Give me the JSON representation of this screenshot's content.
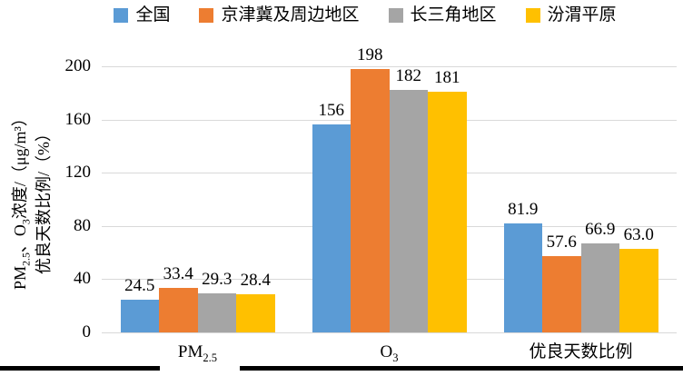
{
  "legend": {
    "items": [
      {
        "label": "全国",
        "color": "#5B9BD5"
      },
      {
        "label": "京津冀及周边地区",
        "color": "#ED7D31"
      },
      {
        "label": "长三角地区",
        "color": "#A5A5A5"
      },
      {
        "label": "汾渭平原",
        "color": "#FFC000"
      }
    ]
  },
  "chart_data": {
    "type": "bar",
    "categories": [
      "PM2.5",
      "O3",
      "优良天数比例"
    ],
    "category_labels_rich": [
      "PM~2.5~",
      "O~3~",
      "优良天数比例"
    ],
    "series": [
      {
        "name": "全国",
        "color": "#5B9BD5",
        "values": [
          24.5,
          156,
          81.9
        ],
        "value_labels": [
          "24.5",
          "156",
          "81.9"
        ]
      },
      {
        "name": "京津冀及周边地区",
        "color": "#ED7D31",
        "values": [
          33.4,
          198,
          57.6
        ],
        "value_labels": [
          "33.4",
          "198",
          "57.6"
        ]
      },
      {
        "name": "长三角地区",
        "color": "#A5A5A5",
        "values": [
          29.3,
          182,
          66.9
        ],
        "value_labels": [
          "29.3",
          "182",
          "66.9"
        ]
      },
      {
        "name": "汾渭平原",
        "color": "#FFC000",
        "values": [
          28.4,
          181,
          63.0
        ],
        "value_labels": [
          "28.4",
          "181",
          "63.0"
        ]
      }
    ],
    "title": "",
    "xlabel": "",
    "ylabel_rich_lines": [
      "PM~2.5~、O~3~浓度/（μg/m³）",
      "优良天数比例/（%）"
    ],
    "ylim": [
      0,
      200
    ],
    "yticks": [
      0,
      40,
      80,
      120,
      160,
      200
    ],
    "grid": true,
    "gridline_color": "#D9D9D9",
    "legend_position": "top",
    "bar_label_position": "outside-end"
  },
  "decorations": {
    "bottom_rule_color": "#000000"
  }
}
